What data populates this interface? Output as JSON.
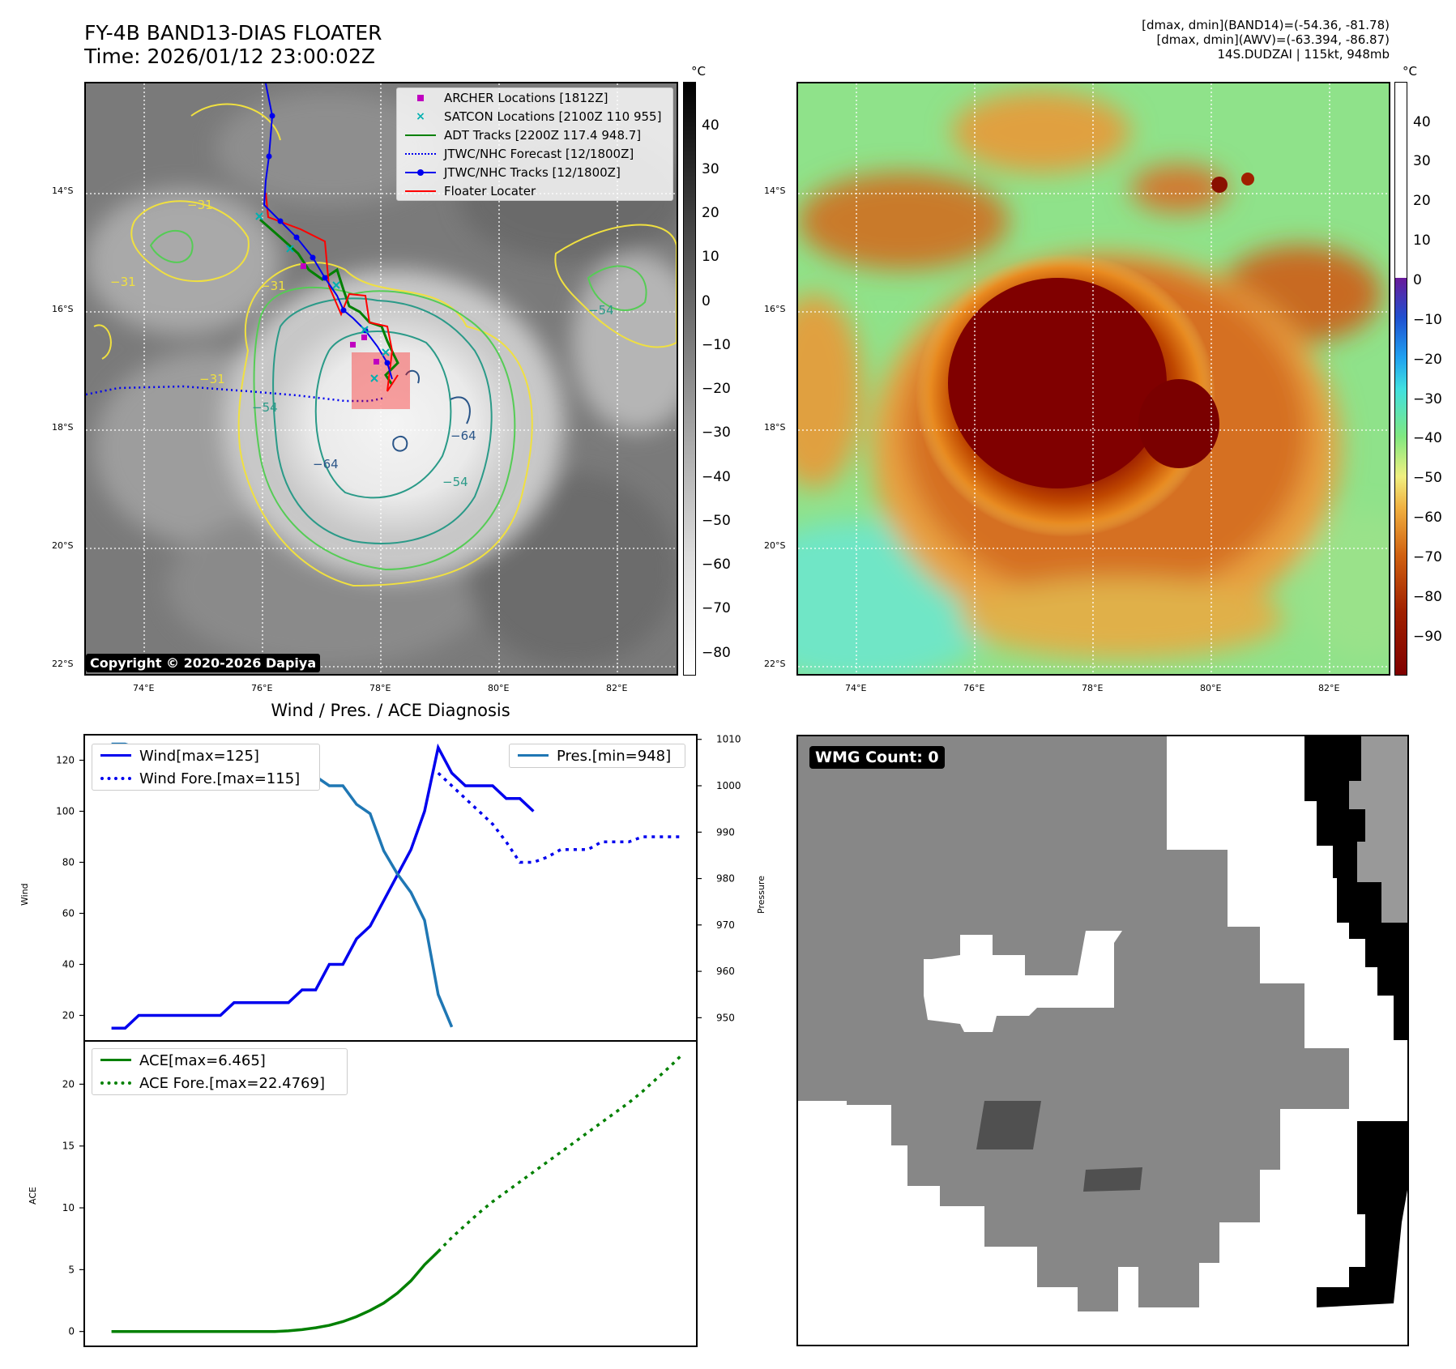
{
  "header": {
    "title_line1": "FY-4B BAND13-DIAS FLOATER",
    "title_line2": "Time: 2026/01/12 23:00:02Z",
    "info_line1": "[dmax, dmin](BAND14)=(-54.36, -81.78)",
    "info_line2": "[dmax, dmin](AWV)=(-63.394, -86.87)",
    "info_line3": "14S.DUDZAI | 115kt, 948mb"
  },
  "map_axes": {
    "lat_labels": [
      "14°S",
      "16°S",
      "18°S",
      "20°S",
      "22°S"
    ],
    "lon_labels": [
      "74°E",
      "76°E",
      "78°E",
      "80°E",
      "82°E"
    ]
  },
  "colorbar_ir": {
    "unit": "°C",
    "labels": [
      "40",
      "30",
      "20",
      "10",
      "0",
      "−10",
      "−20",
      "−30",
      "−40",
      "−50",
      "−60",
      "−70",
      "−80"
    ]
  },
  "colorbar_color": {
    "unit": "°C",
    "labels": [
      "40",
      "30",
      "20",
      "10",
      "0",
      "−10",
      "−20",
      "−30",
      "−40",
      "−50",
      "−60",
      "−70",
      "−80",
      "−90"
    ]
  },
  "contour_labels": [
    "−31",
    "−31",
    "−31",
    "−31",
    "−54",
    "−54",
    "−54",
    "−64",
    "−64"
  ],
  "legend": {
    "archer": "ARCHER Locations [1812Z]",
    "satcon": "SATCON Locations [2100Z 110 955]",
    "adt": "ADT Tracks [2200Z 117.4 948.7]",
    "jtwc_forecast": "JTWC/NHC Forecast [12/1800Z]",
    "jtwc_tracks": "JTWC/NHC Tracks [12/1800Z]",
    "floater": "Floater Locater"
  },
  "copyright": "Copyright © 2020-2026 Dapiya",
  "wmg": {
    "label": "WMG Count: 0"
  },
  "colors": {
    "wind": "#0000ee",
    "pressure": "#1f77b4",
    "ace": "#008000",
    "archer": "#c000c0",
    "satcon": "#00b0b0",
    "adt": "#008000",
    "jtwc": "#0000ee",
    "floater": "#ff0000"
  },
  "chart_data": [
    {
      "type": "line",
      "title": "Wind / Pres. / ACE Diagnosis",
      "ylabel": "Wind",
      "ylabel_right": "Pressure",
      "ylim": [
        10,
        130
      ],
      "ylim_right": [
        945,
        1011
      ],
      "yticks": [
        20,
        40,
        60,
        80,
        100,
        120
      ],
      "yticks_right": [
        950,
        960,
        970,
        980,
        990,
        1000,
        1010
      ],
      "xlim": [
        -1,
        44
      ],
      "legend_wind": "Wind[max=125]",
      "legend_wind_fore": "Wind Fore.[max=115]",
      "legend_pres": "Pres.[min=948]",
      "series": [
        {
          "name": "Wind[max=125]",
          "axis": "left",
          "style": "solid",
          "x": [
            1,
            2,
            3,
            4,
            5,
            6,
            7,
            8,
            9,
            10,
            11,
            12,
            13,
            14,
            15,
            16,
            17,
            18,
            19,
            20,
            21,
            22,
            23,
            24,
            25,
            26,
            27,
            28,
            29,
            30,
            31,
            32
          ],
          "values": [
            15,
            15,
            20,
            20,
            20,
            20,
            20,
            20,
            20,
            25,
            25,
            25,
            25,
            25,
            30,
            30,
            40,
            40,
            50,
            55,
            65,
            75,
            85,
            100,
            125,
            115,
            110,
            110,
            110,
            105,
            105,
            100
          ]
        },
        {
          "name": "Wind Fore.[max=115]",
          "axis": "left",
          "style": "dotted",
          "x": [
            25,
            26,
            27,
            28,
            29,
            30,
            31,
            32,
            33,
            34,
            35,
            36,
            37,
            38,
            39,
            40,
            41,
            42,
            43
          ],
          "values": [
            115,
            110,
            105,
            100,
            95,
            88,
            80,
            80,
            82,
            85,
            85,
            85,
            88,
            88,
            88,
            90,
            90,
            90,
            90
          ]
        },
        {
          "name": "Pres.[min=948]",
          "axis": "right",
          "style": "solid",
          "x": [
            1,
            2,
            3,
            4,
            5,
            6,
            7,
            8,
            9,
            10,
            11,
            12,
            13,
            14,
            15,
            16,
            17,
            18,
            19,
            20,
            21,
            22,
            23,
            24,
            25,
            26
          ],
          "values": [
            1009,
            1009,
            1008,
            1006,
            1006,
            1006,
            1006,
            1006,
            1006,
            1006,
            1005,
            1006,
            1005,
            1004,
            1003,
            1002,
            1000,
            1000,
            996,
            994,
            986,
            981,
            977,
            971,
            955,
            948
          ]
        }
      ]
    },
    {
      "type": "line",
      "ylabel": "ACE",
      "ylim": [
        -1.2,
        23.5
      ],
      "yticks": [
        0,
        5,
        10,
        15,
        20
      ],
      "xlim": [
        -1,
        44
      ],
      "legend_ace": "ACE[max=6.465]",
      "legend_ace_fore": "ACE Fore.[max=22.4769]",
      "series": [
        {
          "name": "ACE[max=6.465]",
          "style": "solid",
          "x": [
            1,
            3,
            5,
            7,
            9,
            11,
            13,
            14,
            15,
            16,
            17,
            18,
            19,
            20,
            21,
            22,
            23,
            24,
            25
          ],
          "values": [
            0,
            0,
            0,
            0,
            0,
            0,
            0,
            0.05,
            0.15,
            0.3,
            0.5,
            0.8,
            1.2,
            1.7,
            2.3,
            3.1,
            4.1,
            5.4,
            6.465
          ]
        },
        {
          "name": "ACE Fore.[max=22.4769]",
          "style": "dotted",
          "x": [
            25,
            26,
            27,
            28,
            29,
            30,
            31,
            32,
            33,
            34,
            35,
            36,
            37,
            38,
            39,
            40,
            41,
            42,
            43
          ],
          "values": [
            6.465,
            7.6,
            8.6,
            9.6,
            10.5,
            11.3,
            12.1,
            12.9,
            13.7,
            14.5,
            15.3,
            16.1,
            16.9,
            17.7,
            18.5,
            19.4,
            20.4,
            21.4,
            22.4769
          ]
        }
      ]
    }
  ]
}
